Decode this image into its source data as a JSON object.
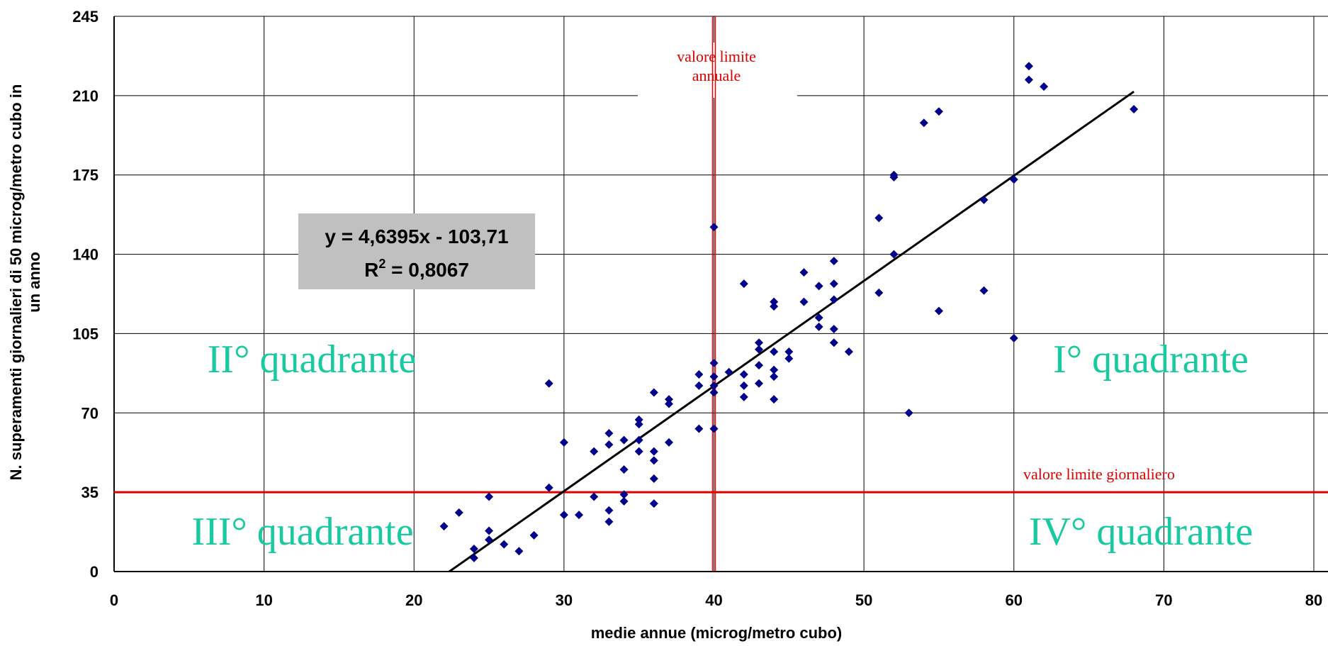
{
  "chart_data": {
    "type": "scatter",
    "title": "",
    "xlabel": "medie annue (microg/metro cubo)",
    "ylabel_lines": [
      "N. superamenti giornalieri di 50 microg/metro cubo in",
      "un anno"
    ],
    "xlim": [
      0,
      80
    ],
    "ylim": [
      0,
      245
    ],
    "x_ticks": [
      0,
      10,
      20,
      30,
      40,
      50,
      60,
      70,
      80
    ],
    "y_ticks": [
      0,
      35,
      70,
      105,
      140,
      175,
      210,
      245
    ],
    "grid": true,
    "series": [
      {
        "points": [
          [
            22,
            20
          ],
          [
            23,
            26
          ],
          [
            24,
            6
          ],
          [
            24,
            10
          ],
          [
            25,
            14
          ],
          [
            25,
            18
          ],
          [
            25,
            33
          ],
          [
            26,
            12
          ],
          [
            27,
            9
          ],
          [
            28,
            16
          ],
          [
            29,
            37
          ],
          [
            29,
            83
          ],
          [
            30,
            25
          ],
          [
            30,
            57
          ],
          [
            31,
            25
          ],
          [
            32,
            33
          ],
          [
            32,
            53
          ],
          [
            33,
            22
          ],
          [
            33,
            27
          ],
          [
            33,
            56
          ],
          [
            33,
            61
          ],
          [
            34,
            31
          ],
          [
            34,
            34
          ],
          [
            34,
            45
          ],
          [
            34,
            58
          ],
          [
            35,
            53
          ],
          [
            35,
            58
          ],
          [
            35,
            65
          ],
          [
            35,
            67
          ],
          [
            36,
            30
          ],
          [
            36,
            41
          ],
          [
            36,
            49
          ],
          [
            36,
            53
          ],
          [
            36,
            79
          ],
          [
            37,
            57
          ],
          [
            37,
            74
          ],
          [
            37,
            76
          ],
          [
            39,
            63
          ],
          [
            39,
            82
          ],
          [
            39,
            87
          ],
          [
            40,
            63
          ],
          [
            40,
            79
          ],
          [
            40,
            82
          ],
          [
            40,
            86
          ],
          [
            40,
            92
          ],
          [
            40,
            152
          ],
          [
            41,
            88
          ],
          [
            42,
            77
          ],
          [
            42,
            82
          ],
          [
            42,
            87
          ],
          [
            42,
            127
          ],
          [
            43,
            83
          ],
          [
            43,
            91
          ],
          [
            43,
            98
          ],
          [
            43,
            101
          ],
          [
            44,
            76
          ],
          [
            44,
            86
          ],
          [
            44,
            89
          ],
          [
            44,
            97
          ],
          [
            44,
            117
          ],
          [
            44,
            119
          ],
          [
            45,
            94
          ],
          [
            45,
            97
          ],
          [
            46,
            119
          ],
          [
            46,
            132
          ],
          [
            47,
            108
          ],
          [
            47,
            112
          ],
          [
            47,
            126
          ],
          [
            48,
            101
          ],
          [
            48,
            107
          ],
          [
            48,
            120
          ],
          [
            48,
            127
          ],
          [
            48,
            137
          ],
          [
            49,
            97
          ],
          [
            51,
            123
          ],
          [
            51,
            156
          ],
          [
            52,
            140
          ],
          [
            52,
            174
          ],
          [
            52,
            175
          ],
          [
            53,
            70
          ],
          [
            54,
            198
          ],
          [
            55,
            115
          ],
          [
            55,
            203
          ],
          [
            58,
            124
          ],
          [
            58,
            164
          ],
          [
            60,
            103
          ],
          [
            60,
            173
          ],
          [
            61,
            223
          ],
          [
            61,
            217
          ],
          [
            62,
            214
          ],
          [
            68,
            204
          ]
        ]
      }
    ],
    "trendline": {
      "slope": 4.6395,
      "intercept": -103.71,
      "x_range": [
        22.35,
        68
      ],
      "equation_label": "y = 4,6395x - 103,71",
      "r2_label": "R",
      "r2_superscript": "2",
      "r2_value": " = 0,8067"
    },
    "limit_lines": {
      "annual": {
        "x": 40,
        "label_line1": "valore limite",
        "label_line2": "annuale"
      },
      "daily": {
        "y": 35,
        "label": "valore limite giornaliero"
      }
    },
    "quadrants": {
      "q1": "I° quadrante",
      "q2": "II° quadrante",
      "q3": "III° quadrante",
      "q4": "IV° quadrante"
    },
    "colors": {
      "points": "#00008b",
      "trendline": "#000000",
      "limit": "#e00000",
      "quadrant_text": "#19c9a0",
      "equation_box": "#c0c0c0",
      "grid": "#000000"
    }
  }
}
